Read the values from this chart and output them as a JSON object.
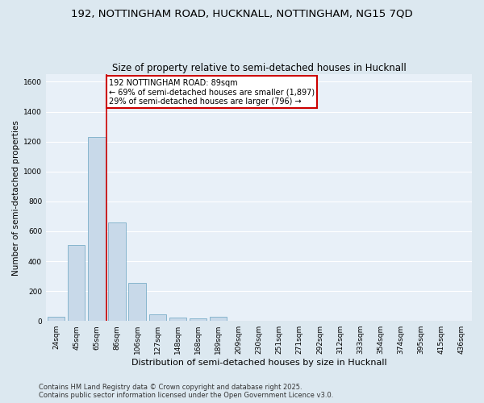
{
  "title1": "192, NOTTINGHAM ROAD, HUCKNALL, NOTTINGHAM, NG15 7QD",
  "title2": "Size of property relative to semi-detached houses in Hucknall",
  "xlabel": "Distribution of semi-detached houses by size in Hucknall",
  "ylabel": "Number of semi-detached properties",
  "categories": [
    "24sqm",
    "45sqm",
    "65sqm",
    "86sqm",
    "106sqm",
    "127sqm",
    "148sqm",
    "168sqm",
    "189sqm",
    "209sqm",
    "230sqm",
    "251sqm",
    "271sqm",
    "292sqm",
    "312sqm",
    "333sqm",
    "354sqm",
    "374sqm",
    "395sqm",
    "415sqm",
    "436sqm"
  ],
  "values": [
    30,
    510,
    1230,
    660,
    255,
    45,
    25,
    15,
    30,
    0,
    0,
    0,
    0,
    0,
    0,
    0,
    0,
    0,
    0,
    0,
    0
  ],
  "bar_color": "#c8d9e9",
  "bar_edge_color": "#7aaec8",
  "red_line_x": 2.5,
  "annotation_title": "192 NOTTINGHAM ROAD: 89sqm",
  "annotation_line1": "← 69% of semi-detached houses are smaller (1,897)",
  "annotation_line2": "29% of semi-detached houses are larger (796) →",
  "annotation_box_color": "#ffffff",
  "annotation_box_edge": "#cc0000",
  "ylim": [
    0,
    1650
  ],
  "yticks": [
    0,
    200,
    400,
    600,
    800,
    1000,
    1200,
    1400,
    1600
  ],
  "footer1": "Contains HM Land Registry data © Crown copyright and database right 2025.",
  "footer2": "Contains public sector information licensed under the Open Government Licence v3.0.",
  "bg_color": "#dce8f0",
  "plot_bg_color": "#e8f0f8",
  "grid_color": "#ffffff",
  "title_fontsize": 9.5,
  "subtitle_fontsize": 8.5,
  "tick_fontsize": 6.5,
  "ylabel_fontsize": 7.5,
  "xlabel_fontsize": 8,
  "annotation_fontsize": 7,
  "footer_fontsize": 6
}
